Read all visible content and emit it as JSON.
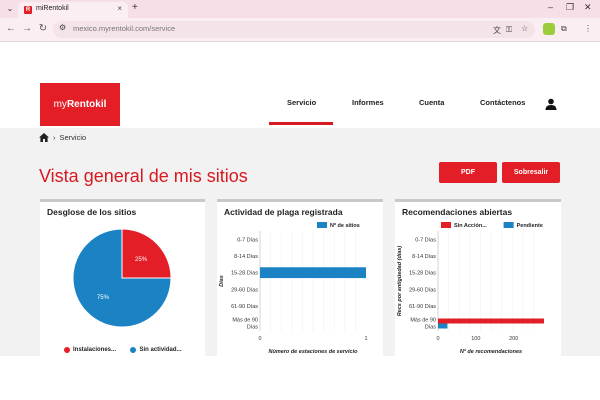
{
  "browser": {
    "tab_title": "miRentokil",
    "tab_favicon": "R",
    "url_host": "mexico.myrentokil.com",
    "url_path": "/service",
    "new_tab": "+",
    "close_tab": "×"
  },
  "site": {
    "logo_prefix": "my",
    "logo_brand": "Rentokil",
    "nav": [
      "Servicio",
      "Informes",
      "Cuenta",
      "Contáctenos"
    ],
    "active_nav": "Servicio"
  },
  "breadcrumb": {
    "current": "Servicio"
  },
  "page_title": "Vista general de mis sitios",
  "buttons": {
    "pdf": "PDF",
    "excel": "Sobresalir"
  },
  "colors": {
    "brand_red": "#E41E26",
    "chart_blue": "#1B82C4",
    "chart_red": "#E41E26"
  },
  "cards": {
    "breakdown": {
      "title": "Desglose de los sitios",
      "legend": [
        "Instalaciones...",
        "Sin actividad..."
      ]
    },
    "activity": {
      "title": "Actividad de plaga registrada",
      "legend": "Nº de sitios",
      "ylabel": "Días",
      "xlabel": "Número de estaciones de servicio"
    },
    "recommendations": {
      "title": "Recomendaciones abiertas",
      "legend": [
        "Sin Acción...",
        "Pendiente"
      ],
      "ylabel": "Recs por antigüedad (días)",
      "xlabel": "Nº de recomendaciones"
    }
  },
  "chart_data": [
    {
      "type": "pie",
      "title": "Desglose de los sitios",
      "labels": [
        "Instalaciones...",
        "Sin actividad..."
      ],
      "values": [
        25,
        75
      ],
      "value_labels": [
        "25%",
        "75%"
      ],
      "colors": [
        "#E41E26",
        "#1B82C4"
      ]
    },
    {
      "type": "bar",
      "orientation": "horizontal",
      "title": "Actividad de plaga registrada",
      "categories": [
        "0-7 Días",
        "8-14 Días",
        "15-28 Días",
        "29-60 Días",
        "61-90 Días",
        "Más de 90 Días"
      ],
      "series": [
        {
          "name": "Nº de sitios",
          "values": [
            0,
            0,
            1,
            0,
            0,
            0
          ],
          "color": "#1B82C4"
        }
      ],
      "xlabel": "Número de estaciones de servicio",
      "ylabel": "Días",
      "xlim": [
        0,
        1
      ],
      "xticks": [
        0,
        1
      ]
    },
    {
      "type": "bar",
      "orientation": "horizontal",
      "title": "Recomendaciones abiertas",
      "categories": [
        "0-7 Días",
        "8-14 Días",
        "15-28 Días",
        "29-60 Días",
        "61-90 Días",
        "Más de 90 Días"
      ],
      "series": [
        {
          "name": "Sin Acción...",
          "values": [
            0,
            0,
            0,
            0,
            0,
            280
          ],
          "color": "#E41E26"
        },
        {
          "name": "Pendiente",
          "values": [
            0,
            0,
            0,
            0,
            0,
            25
          ],
          "color": "#1B82C4"
        }
      ],
      "xlabel": "Nº de recomendaciones",
      "ylabel": "Recs por antigüedad (días)",
      "xlim": [
        0,
        280
      ],
      "xticks": [
        0,
        100,
        200
      ]
    }
  ]
}
